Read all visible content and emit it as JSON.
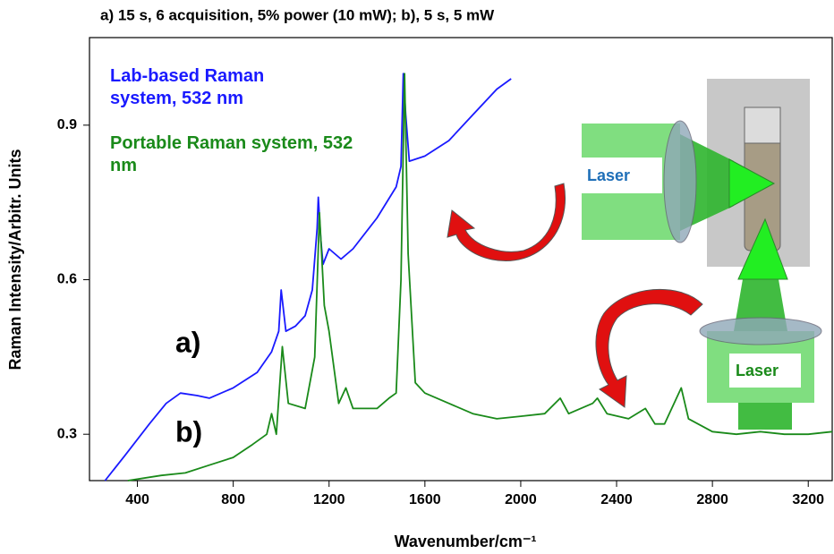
{
  "chart_data": {
    "type": "line",
    "title": "a)   15 s, 6 acquisition, 5% power (10 mW); b), 5 s,  5 mW",
    "x_label": "Wavenumber/cm⁻¹",
    "y_label": "Raman Intensity/Arbitr. Units",
    "xlim": [
      200,
      3300
    ],
    "ylim": [
      0.21,
      1.07
    ],
    "xticks": [
      400,
      800,
      1200,
      1600,
      2000,
      2400,
      2800,
      3200
    ],
    "yticks": [
      0.3,
      0.6,
      0.9
    ],
    "grid": false,
    "series": [
      {
        "name": "Lab-based Raman system, 532 nm",
        "color": "#1a1aff",
        "x": [
          265,
          350,
          450,
          520,
          580,
          650,
          700,
          800,
          900,
          960,
          990,
          1000,
          1020,
          1060,
          1100,
          1130,
          1150,
          1155,
          1165,
          1175,
          1200,
          1250,
          1300,
          1400,
          1480,
          1500,
          1510,
          1520,
          1535,
          1600,
          1700,
          1800,
          1900,
          1960
        ],
        "values": [
          0.21,
          0.26,
          0.32,
          0.36,
          0.38,
          0.375,
          0.37,
          0.39,
          0.42,
          0.46,
          0.5,
          0.58,
          0.5,
          0.51,
          0.53,
          0.58,
          0.7,
          0.76,
          0.68,
          0.63,
          0.66,
          0.64,
          0.66,
          0.72,
          0.78,
          0.82,
          1.0,
          0.92,
          0.83,
          0.84,
          0.87,
          0.92,
          0.97,
          0.99
        ]
      },
      {
        "name": "Portable Raman system, 532 nm",
        "color": "#1a8a1a",
        "x": [
          360,
          500,
          600,
          700,
          800,
          880,
          940,
          960,
          980,
          1005,
          1030,
          1100,
          1140,
          1160,
          1180,
          1200,
          1240,
          1270,
          1300,
          1350,
          1400,
          1450,
          1480,
          1500,
          1515,
          1530,
          1560,
          1600,
          1700,
          1800,
          1900,
          2000,
          2100,
          2165,
          2200,
          2300,
          2320,
          2360,
          2450,
          2520,
          2560,
          2600,
          2670,
          2700,
          2800,
          2900,
          3000,
          3100,
          3200,
          3300
        ],
        "values": [
          0.21,
          0.22,
          0.225,
          0.24,
          0.255,
          0.28,
          0.3,
          0.34,
          0.3,
          0.47,
          0.36,
          0.35,
          0.45,
          0.73,
          0.55,
          0.5,
          0.36,
          0.39,
          0.35,
          0.35,
          0.35,
          0.37,
          0.38,
          0.6,
          1.0,
          0.65,
          0.4,
          0.38,
          0.36,
          0.34,
          0.33,
          0.335,
          0.34,
          0.37,
          0.34,
          0.36,
          0.37,
          0.34,
          0.33,
          0.35,
          0.32,
          0.32,
          0.39,
          0.33,
          0.305,
          0.3,
          0.305,
          0.3,
          0.3,
          0.305
        ]
      }
    ],
    "annotations": [
      "a)",
      "b)",
      "Laser",
      "Laser"
    ]
  }
}
